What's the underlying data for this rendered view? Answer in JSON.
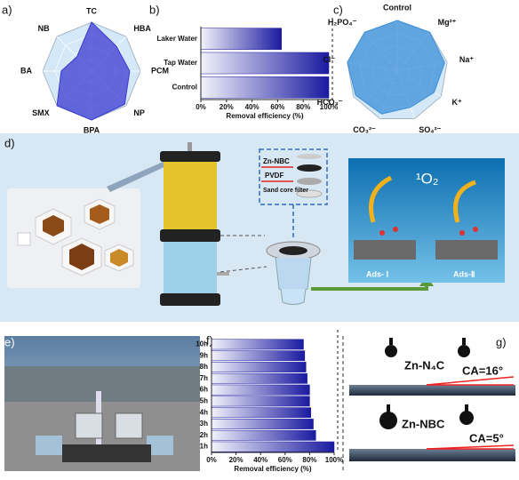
{
  "panel_labels": [
    "a)",
    "b)",
    "c)",
    "d)",
    "e)",
    "f)",
    "g)"
  ],
  "chart_data": [
    {
      "type": "radar",
      "categories": [
        "TC",
        "HBA",
        "PCM",
        "NP",
        "BPA",
        "SMX",
        "BA",
        "NB"
      ],
      "values": [
        100,
        72,
        78,
        96,
        100,
        100,
        62,
        42
      ],
      "color": "#3a3ad0",
      "rlim": [
        0,
        100
      ]
    },
    {
      "type": "barh",
      "categories": [
        "Laker Water",
        "Tap Water",
        "Control"
      ],
      "values": [
        63,
        100,
        100
      ],
      "color": "#1a1aa0",
      "xlim": [
        0,
        100
      ],
      "xticks": [
        {
          "value": 0,
          "label": "0%"
        },
        {
          "value": 20,
          "label": "20%"
        },
        {
          "value": 40,
          "label": "40%"
        },
        {
          "value": 60,
          "label": "60%"
        },
        {
          "value": 80,
          "label": "80%"
        },
        {
          "value": 100,
          "label": "100%"
        }
      ],
      "xlabel": "Removal efficiency (%)"
    },
    {
      "type": "radar",
      "categories": [
        "Control",
        "Mg²⁺",
        "Na⁺",
        "K⁺",
        "SO₄²⁻",
        "CO₃²⁻",
        "HCO₃⁻",
        "Cl⁻",
        "H₂PO₄⁻"
      ],
      "values": [
        100,
        100,
        95,
        84,
        76,
        90,
        95,
        100,
        100
      ],
      "color": "#3b8fd8",
      "rlim": [
        0,
        100
      ]
    },
    {
      "type": "barh",
      "categories": [
        "10h",
        "9h",
        "8h",
        "7h",
        "6h",
        "5h",
        "4h",
        "3h",
        "2h",
        "1h"
      ],
      "values": [
        75,
        76,
        77,
        78,
        80,
        80,
        81,
        83,
        85,
        100
      ],
      "color": "#1a1aa0",
      "xlim": [
        0,
        100
      ],
      "xticks": [
        {
          "value": 0,
          "label": "0%"
        },
        {
          "value": 20,
          "label": "20%"
        },
        {
          "value": 40,
          "label": "40%"
        },
        {
          "value": 60,
          "label": "60%"
        },
        {
          "value": 80,
          "label": "80%"
        },
        {
          "value": 100,
          "label": "100%"
        }
      ],
      "xlabel": "Removal efficiency (%)"
    }
  ],
  "diagram": {
    "layers": [
      "Zn-NBC",
      "PVDF",
      "Sand core filter"
    ],
    "species": "¹O₂",
    "sites": [
      "Ads- Ⅰ",
      "Ads-Ⅱ"
    ]
  },
  "contact_angle": {
    "samples": [
      {
        "name": "Zn-N₄C",
        "angle": "CA=16°"
      },
      {
        "name": "Zn-NBC",
        "angle": "CA=5°"
      }
    ]
  }
}
